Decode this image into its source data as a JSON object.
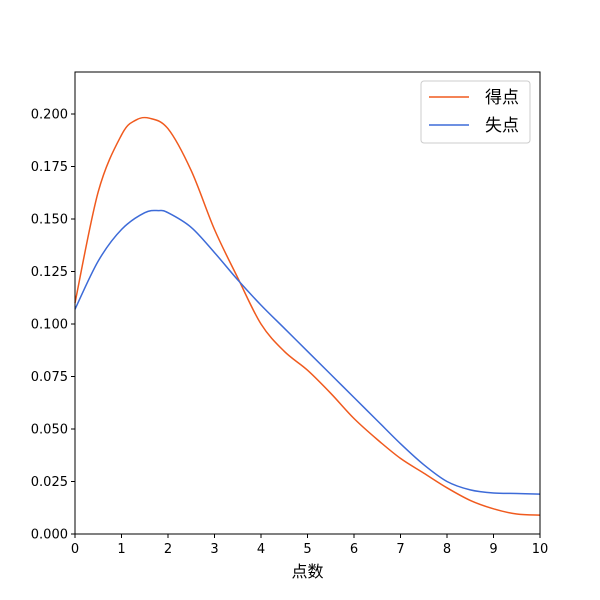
{
  "chart_data": {
    "type": "line",
    "xlabel": "点数",
    "ylabel": "",
    "xlim": [
      0,
      10
    ],
    "ylim": [
      0,
      0.22
    ],
    "xticks": [
      0,
      1,
      2,
      3,
      4,
      5,
      6,
      7,
      8,
      9,
      10
    ],
    "xtick_labels": [
      "0",
      "1",
      "2",
      "3",
      "4",
      "5",
      "6",
      "7",
      "8",
      "9",
      "10"
    ],
    "yticks": [
      0,
      0.025,
      0.05,
      0.075,
      0.1,
      0.125,
      0.15,
      0.175,
      0.2
    ],
    "ytick_labels": [
      "0.000",
      "0.025",
      "0.050",
      "0.075",
      "0.100",
      "0.125",
      "0.150",
      "0.175",
      "0.200"
    ],
    "grid": false,
    "legend_position": "top-right",
    "series": [
      {
        "name": "得点",
        "color": "#f05a1e",
        "x": [
          0,
          0.5,
          1.0,
          1.3,
          1.6,
          2.0,
          2.5,
          3.0,
          3.5,
          4.0,
          4.5,
          5.0,
          5.5,
          6.0,
          6.5,
          7.0,
          7.5,
          8.0,
          8.5,
          9.0,
          9.5,
          10.0
        ],
        "y": [
          0.11,
          0.163,
          0.19,
          0.197,
          0.198,
          0.193,
          0.173,
          0.145,
          0.122,
          0.1,
          0.087,
          0.078,
          0.067,
          0.055,
          0.045,
          0.036,
          0.029,
          0.022,
          0.016,
          0.012,
          0.0095,
          0.009
        ]
      },
      {
        "name": "失点",
        "color": "#3d6bd8",
        "x": [
          0,
          0.5,
          1.0,
          1.5,
          1.8,
          2.0,
          2.5,
          3.0,
          3.5,
          4.0,
          4.5,
          5.0,
          5.5,
          6.0,
          6.5,
          7.0,
          7.5,
          8.0,
          8.5,
          9.0,
          9.5,
          10.0
        ],
        "y": [
          0.107,
          0.13,
          0.145,
          0.153,
          0.154,
          0.153,
          0.146,
          0.134,
          0.121,
          0.109,
          0.098,
          0.087,
          0.076,
          0.065,
          0.054,
          0.043,
          0.033,
          0.025,
          0.021,
          0.0195,
          0.0193,
          0.019
        ]
      }
    ]
  }
}
